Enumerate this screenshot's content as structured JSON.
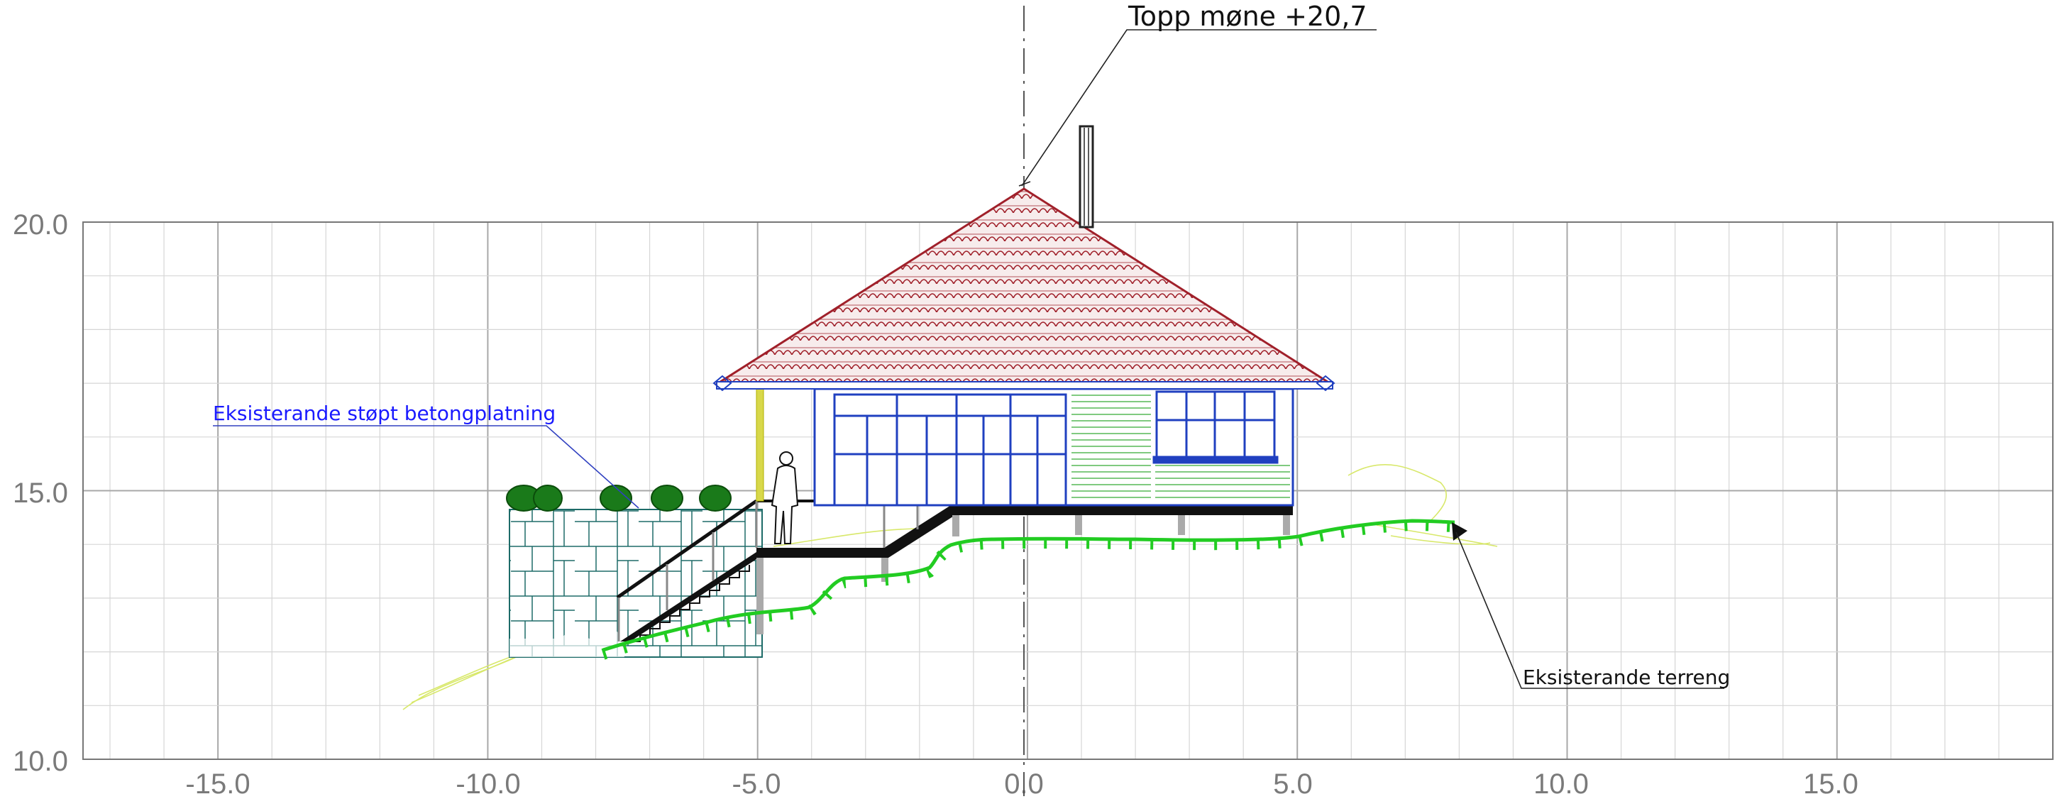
{
  "drawing": {
    "ridge_label": "Topp møne  +20,7",
    "retaining_wall_label": "Eksisterande støpt betongplatning",
    "terrain_label": "Eksisterande terreng"
  },
  "grid": {
    "x_ticks": [
      "-15.0",
      "-10.0",
      "-5.0",
      "0.0",
      "5.0",
      "10.0",
      "15.0"
    ],
    "y_ticks": [
      "20.0",
      "15.0",
      "10.0"
    ],
    "x_range": [
      -17.5,
      19
    ],
    "y_range": [
      10,
      20
    ]
  },
  "colors": {
    "roof": "#a0202a",
    "walls": "#2040c0",
    "terrain": "#22cc22",
    "label_blue": "#1a1aff",
    "wall_stone": "#1d6b68",
    "shrubs": "#1a7a1a",
    "yellow": "#c8c800",
    "grid": "#cfcfcf"
  }
}
